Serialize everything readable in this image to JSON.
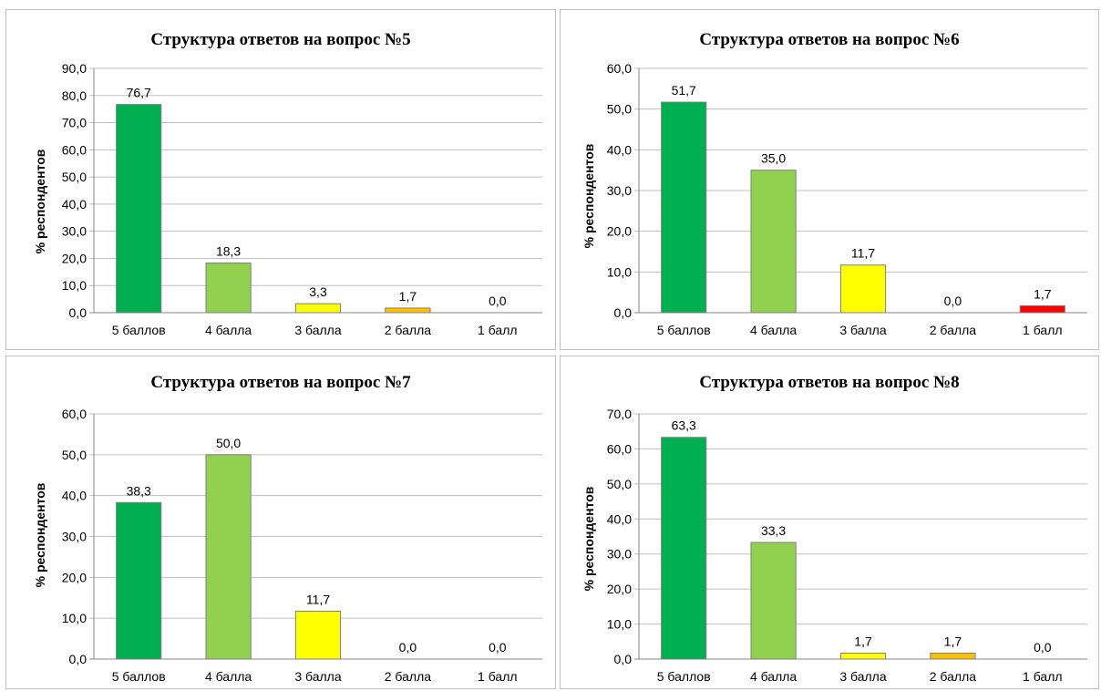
{
  "chart_data": [
    {
      "type": "bar",
      "title": "Структура ответов на вопрос №5",
      "ylabel": "% респондентов",
      "xlabel": "",
      "categories": [
        "5 баллов",
        "4 балла",
        "3 балла",
        "2 балла",
        "1 балл"
      ],
      "values": [
        76.7,
        18.3,
        3.3,
        1.7,
        0.0
      ],
      "value_labels": [
        "76,7",
        "18,3",
        "3,3",
        "1,7",
        "0,0"
      ],
      "ylim": [
        0,
        90
      ],
      "yticks": [
        "0,0",
        "10,0",
        "20,0",
        "30,0",
        "40,0",
        "50,0",
        "60,0",
        "70,0",
        "80,0",
        "90,0"
      ],
      "bar_colors": [
        "#00b050",
        "#92d050",
        "#ffff00",
        "#ffc000",
        "#ff0000"
      ],
      "grid": true,
      "legend": "none"
    },
    {
      "type": "bar",
      "title": "Структура ответов на вопрос №6",
      "ylabel": "% респондентов",
      "xlabel": "",
      "categories": [
        "5 баллов",
        "4 балла",
        "3 балла",
        "2 балла",
        "1 балл"
      ],
      "values": [
        51.7,
        35.0,
        11.7,
        0.0,
        1.7
      ],
      "value_labels": [
        "51,7",
        "35,0",
        "11,7",
        "0,0",
        "1,7"
      ],
      "ylim": [
        0,
        60
      ],
      "yticks": [
        "0,0",
        "10,0",
        "20,0",
        "30,0",
        "40,0",
        "50,0",
        "60,0"
      ],
      "bar_colors": [
        "#00b050",
        "#92d050",
        "#ffff00",
        "#ffc000",
        "#ff0000"
      ],
      "grid": true,
      "legend": "none"
    },
    {
      "type": "bar",
      "title": "Структура ответов на вопрос №7",
      "ylabel": "% респондентов",
      "xlabel": "",
      "categories": [
        "5 баллов",
        "4 балла",
        "3 балла",
        "2 балла",
        "1 балл"
      ],
      "values": [
        38.3,
        50.0,
        11.7,
        0.0,
        0.0
      ],
      "value_labels": [
        "38,3",
        "50,0",
        "11,7",
        "0,0",
        "0,0"
      ],
      "ylim": [
        0,
        60
      ],
      "yticks": [
        "0,0",
        "10,0",
        "20,0",
        "30,0",
        "40,0",
        "50,0",
        "60,0"
      ],
      "bar_colors": [
        "#00b050",
        "#92d050",
        "#ffff00",
        "#ffc000",
        "#ff0000"
      ],
      "grid": true,
      "legend": "none"
    },
    {
      "type": "bar",
      "title": "Структура ответов на вопрос №8",
      "ylabel": "% респондентов",
      "xlabel": "",
      "categories": [
        "5 баллов",
        "4 балла",
        "3 балла",
        "2 балла",
        "1 балл"
      ],
      "values": [
        63.3,
        33.3,
        1.7,
        1.7,
        0.0
      ],
      "value_labels": [
        "63,3",
        "33,3",
        "1,7",
        "1,7",
        "0,0"
      ],
      "ylim": [
        0,
        70
      ],
      "yticks": [
        "0,0",
        "10,0",
        "20,0",
        "30,0",
        "40,0",
        "50,0",
        "60,0",
        "70,0"
      ],
      "bar_colors": [
        "#00b050",
        "#92d050",
        "#ffff00",
        "#ffc000",
        "#ff0000"
      ],
      "grid": true,
      "legend": "none"
    }
  ]
}
